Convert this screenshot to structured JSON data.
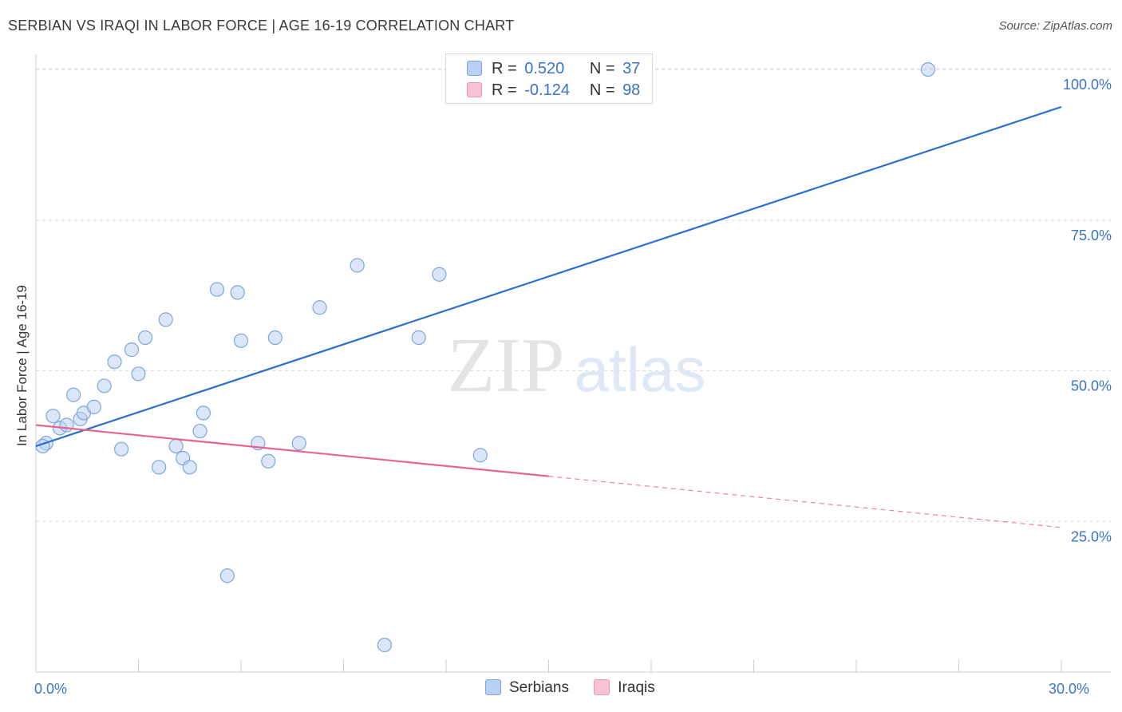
{
  "title": "SERBIAN VS IRAQI IN LABOR FORCE | AGE 16-19 CORRELATION CHART",
  "source": "Source: ZipAtlas.com",
  "watermark": {
    "zip": "ZIP",
    "atlas": "atlas"
  },
  "legend_top": {
    "serbians": {
      "r_label": "R =",
      "r_value": "0.520",
      "n_label": "N =",
      "n_value": "37"
    },
    "iraqis": {
      "r_label": "R =",
      "r_value": "-0.124",
      "n_label": "N =",
      "n_value": "98"
    }
  },
  "legend_bottom": {
    "serbians": "Serbians",
    "iraqis": "Iraqis"
  },
  "colors": {
    "serbian_fill": "#b8d0f3",
    "serbian_stroke": "#7fa6de",
    "serbian_line": "#2f6fcc",
    "iraqi_fill": "#f7c3d4",
    "iraqi_stroke": "#ec98b5",
    "iraqi_line": "#e8648e",
    "axis_label": "#3b73c8",
    "grid": "#dcdcdc"
  },
  "chart_data": {
    "type": "scatter",
    "title": "SERBIAN VS IRAQI IN LABOR FORCE | AGE 16-19 CORRELATION CHART",
    "xlabel": "",
    "ylabel": "In Labor Force | Age 16-19",
    "xlim": [
      0,
      30
    ],
    "ylim": [
      0,
      102
    ],
    "x_tick_labels": [
      {
        "value": 0,
        "label": "0.0%"
      },
      {
        "value": 30,
        "label": "30.0%"
      }
    ],
    "y_tick_labels": [
      {
        "value": 25,
        "label": "25.0%"
      },
      {
        "value": 50,
        "label": "50.0%"
      },
      {
        "value": 75,
        "label": "75.0%"
      },
      {
        "value": 100,
        "label": "100.0%"
      }
    ],
    "series": [
      {
        "name": "Serbians",
        "r": 0.52,
        "n": 37,
        "trend": {
          "x0": 0,
          "y0": 37.5,
          "x1": 30,
          "y1": 93.8,
          "dashed_from": null
        },
        "points": [
          [
            0.3,
            38
          ],
          [
            0.5,
            42.5
          ],
          [
            0.7,
            40.5
          ],
          [
            1.1,
            46
          ],
          [
            1.3,
            42
          ],
          [
            1.4,
            43
          ],
          [
            1.7,
            44
          ],
          [
            2.0,
            47.5
          ],
          [
            2.3,
            51.5
          ],
          [
            2.5,
            37
          ],
          [
            2.8,
            53.5
          ],
          [
            3.0,
            49.5
          ],
          [
            3.2,
            55.5
          ],
          [
            3.6,
            34
          ],
          [
            3.8,
            58.5
          ],
          [
            4.1,
            37.5
          ],
          [
            4.3,
            35.5
          ],
          [
            4.5,
            34
          ],
          [
            4.8,
            40
          ],
          [
            4.9,
            43
          ],
          [
            5.3,
            63.5
          ],
          [
            5.6,
            16
          ],
          [
            5.9,
            63
          ],
          [
            6.0,
            55
          ],
          [
            6.5,
            38
          ],
          [
            6.8,
            35
          ],
          [
            7.0,
            55.5
          ],
          [
            7.7,
            38
          ],
          [
            8.3,
            60.5
          ],
          [
            9.4,
            67.5
          ],
          [
            10.2,
            4.5
          ],
          [
            11.2,
            55.5
          ],
          [
            11.8,
            66
          ],
          [
            13.0,
            36
          ],
          [
            26.1,
            100
          ],
          [
            0.2,
            37.5
          ],
          [
            0.9,
            41
          ]
        ]
      },
      {
        "name": "Iraqis",
        "r": -0.124,
        "n": 98,
        "trend": {
          "x0": 0,
          "y0": 41,
          "x1": 30,
          "y1": 24,
          "solid_until_x": 15
        }
      }
    ]
  }
}
